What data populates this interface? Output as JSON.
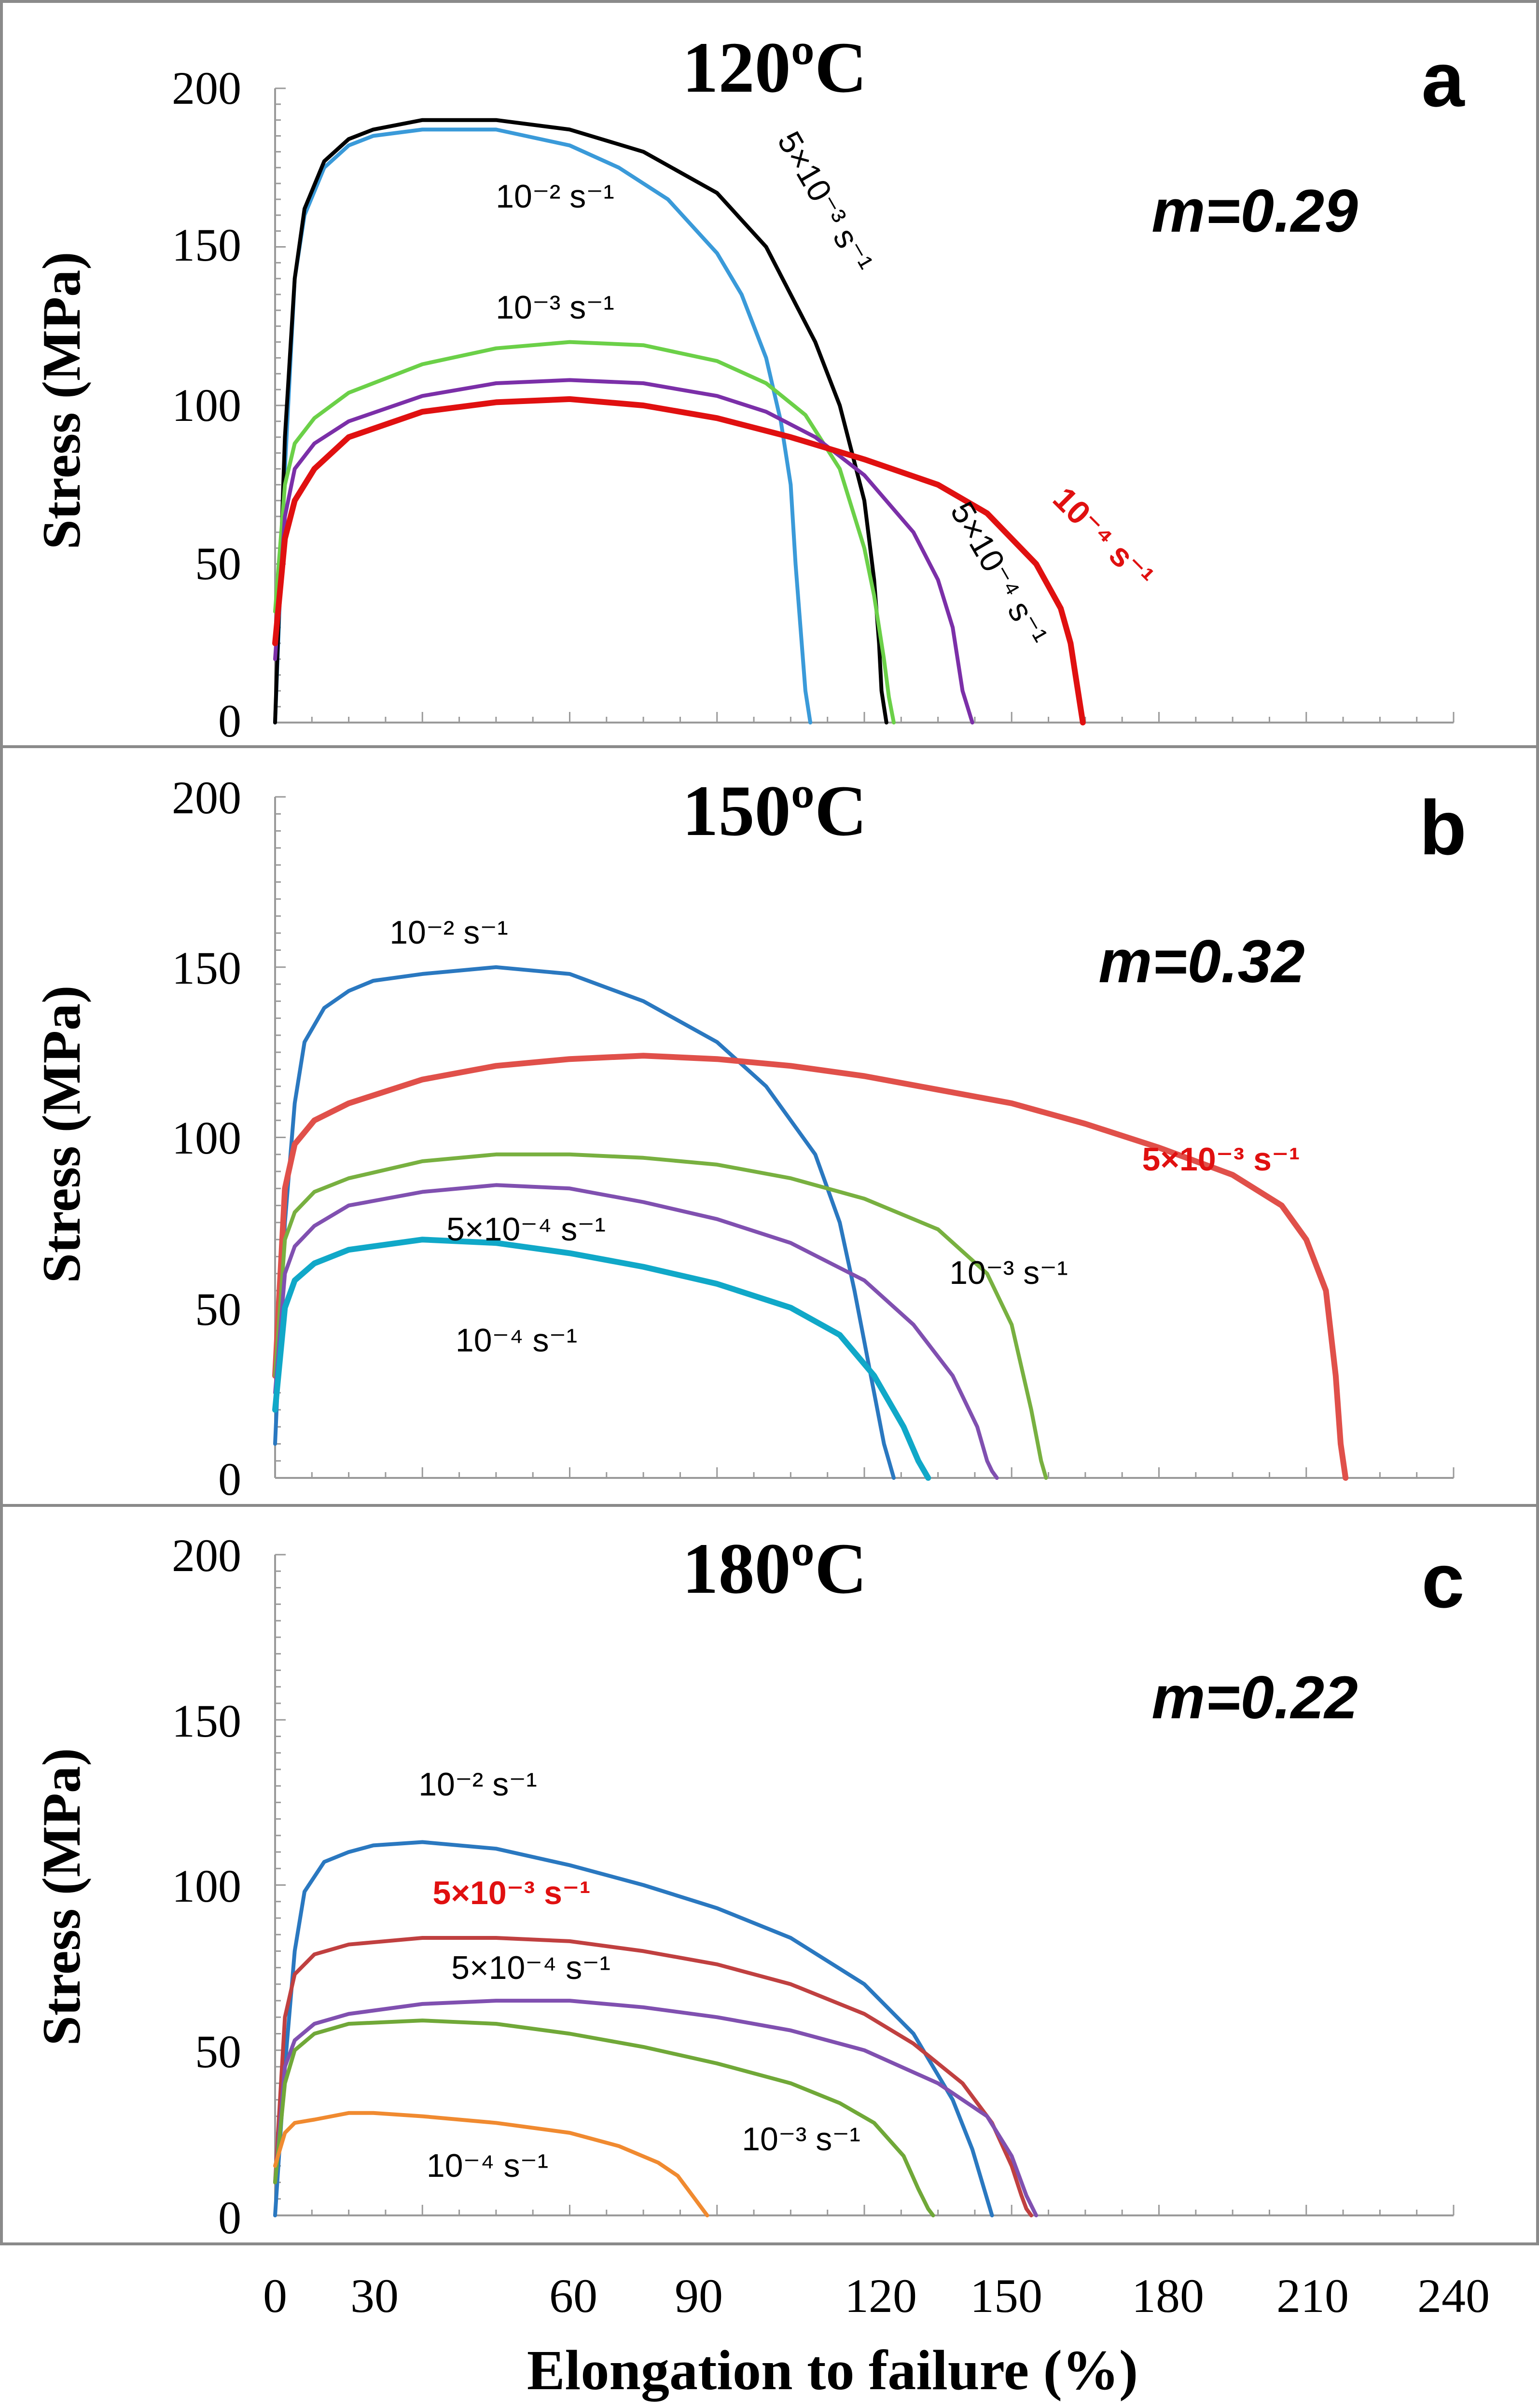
{
  "x_axis_label": "Elongation to failure (%)",
  "x_tick_labels": [
    "0",
    "30",
    "60",
    "90",
    "120",
    "150",
    "180",
    "210",
    "240"
  ],
  "chart_data": [
    {
      "type": "line",
      "title": "120ºC",
      "panel_letter": "a",
      "m_value": "m=0.29",
      "ylabel": "Stress (MPa)",
      "xlim": [
        0,
        240
      ],
      "ylim": [
        0,
        200
      ],
      "y_tick_labels": [
        "0",
        "50",
        "100",
        "150",
        "200"
      ],
      "series": [
        {
          "name": "10⁻² s⁻¹",
          "color": "#3a9ad9",
          "x": [
            0,
            2,
            4,
            6,
            10,
            15,
            20,
            30,
            45,
            60,
            70,
            80,
            90,
            95,
            100,
            103,
            105,
            106,
            107,
            108,
            109
          ],
          "y": [
            0,
            80,
            140,
            160,
            175,
            182,
            185,
            187,
            187,
            182,
            175,
            165,
            148,
            135,
            115,
            95,
            75,
            50,
            30,
            10,
            0
          ]
        },
        {
          "name": "5×10⁻³ s⁻¹",
          "color": "#000000",
          "x": [
            0,
            2,
            4,
            6,
            10,
            15,
            20,
            30,
            45,
            60,
            75,
            90,
            100,
            110,
            115,
            120,
            122,
            123,
            123.5,
            124,
            124.5
          ],
          "y": [
            0,
            90,
            140,
            162,
            177,
            184,
            187,
            190,
            190,
            187,
            180,
            167,
            150,
            120,
            100,
            70,
            45,
            25,
            10,
            5,
            0
          ]
        },
        {
          "name": "10⁻³ s⁻¹",
          "color": "#6bd048",
          "x": [
            0,
            2,
            4,
            8,
            15,
            30,
            45,
            60,
            75,
            90,
            100,
            108,
            115,
            120,
            122,
            124,
            125,
            126
          ],
          "y": [
            35,
            75,
            88,
            96,
            104,
            113,
            118,
            120,
            119,
            114,
            107,
            97,
            80,
            55,
            40,
            20,
            8,
            0
          ]
        },
        {
          "name": "5×10⁻⁴ s⁻¹",
          "color": "#7b2fa8",
          "x": [
            0,
            2,
            4,
            8,
            15,
            30,
            45,
            60,
            75,
            90,
            100,
            110,
            120,
            130,
            135,
            138,
            139,
            140,
            141,
            142
          ],
          "y": [
            20,
            65,
            80,
            88,
            95,
            103,
            107,
            108,
            107,
            103,
            98,
            90,
            78,
            60,
            45,
            30,
            20,
            10,
            5,
            0
          ]
        },
        {
          "name": "10⁻⁴ s⁻¹",
          "color": "#e01010",
          "x": [
            0,
            2,
            4,
            8,
            15,
            30,
            45,
            60,
            75,
            90,
            105,
            120,
            135,
            145,
            155,
            160,
            162,
            163,
            164,
            164.5
          ],
          "y": [
            25,
            58,
            70,
            80,
            90,
            98,
            101,
            102,
            100,
            96,
            90,
            83,
            75,
            66,
            50,
            36,
            25,
            15,
            5,
            0
          ]
        }
      ],
      "annotations": [
        {
          "text": "10⁻² s⁻¹",
          "series": "10⁻² s⁻¹"
        },
        {
          "text": "5×10⁻³ s⁻¹",
          "series": "5×10⁻³ s⁻¹"
        },
        {
          "text": "10⁻³ s⁻¹",
          "series": "10⁻³ s⁻¹"
        },
        {
          "text": "5×10⁻⁴ s⁻¹",
          "series": "5×10⁻⁴ s⁻¹"
        },
        {
          "text": "10⁻⁴ s⁻¹",
          "series": "10⁻⁴ s⁻¹"
        }
      ]
    },
    {
      "type": "line",
      "title": "150ºC",
      "panel_letter": "b",
      "m_value": "m=0.32",
      "ylabel": "Stress (MPa)",
      "xlim": [
        0,
        240
      ],
      "ylim": [
        0,
        200
      ],
      "y_tick_labels": [
        "0",
        "50",
        "100",
        "150",
        "200"
      ],
      "series": [
        {
          "name": "10⁻² s⁻¹",
          "color": "#2a78c0",
          "x": [
            0,
            2,
            4,
            6,
            10,
            15,
            20,
            30,
            45,
            60,
            75,
            90,
            100,
            110,
            115,
            118,
            120,
            122,
            124,
            125,
            126
          ],
          "y": [
            10,
            75,
            110,
            128,
            138,
            143,
            146,
            148,
            150,
            148,
            140,
            128,
            115,
            95,
            75,
            55,
            40,
            25,
            10,
            5,
            0
          ]
        },
        {
          "name": "5×10⁻³ s⁻¹",
          "color": "#e0504a",
          "x": [
            0,
            2,
            4,
            8,
            15,
            30,
            45,
            60,
            75,
            90,
            105,
            120,
            135,
            150,
            165,
            180,
            195,
            205,
            210,
            214,
            216,
            217,
            218
          ],
          "y": [
            30,
            85,
            98,
            105,
            110,
            117,
            121,
            123,
            124,
            123,
            121,
            118,
            114,
            110,
            104,
            97,
            89,
            80,
            70,
            55,
            30,
            10,
            0
          ]
        },
        {
          "name": "10⁻³ s⁻¹",
          "color": "#78b040",
          "x": [
            0,
            2,
            4,
            8,
            15,
            30,
            45,
            60,
            75,
            90,
            105,
            120,
            135,
            145,
            150,
            154,
            156,
            157
          ],
          "y": [
            30,
            70,
            78,
            84,
            88,
            93,
            95,
            95,
            94,
            92,
            88,
            82,
            73,
            60,
            45,
            20,
            5,
            0
          ]
        },
        {
          "name": "5×10⁻⁴ s⁻¹",
          "color": "#8050b0",
          "x": [
            0,
            2,
            4,
            8,
            15,
            30,
            45,
            60,
            75,
            90,
            105,
            120,
            130,
            138,
            143,
            145,
            146,
            147
          ],
          "y": [
            25,
            60,
            68,
            74,
            80,
            84,
            86,
            85,
            81,
            76,
            69,
            58,
            45,
            30,
            15,
            5,
            2,
            0
          ]
        },
        {
          "name": "10⁻⁴ s⁻¹",
          "color": "#10a8c8",
          "x": [
            0,
            2,
            4,
            8,
            15,
            30,
            45,
            60,
            75,
            90,
            105,
            115,
            122,
            128,
            131,
            133
          ],
          "y": [
            20,
            50,
            58,
            63,
            67,
            70,
            69,
            66,
            62,
            57,
            50,
            42,
            30,
            15,
            5,
            0
          ]
        }
      ],
      "annotations": [
        {
          "text": "10⁻² s⁻¹",
          "series": "10⁻² s⁻¹"
        },
        {
          "text": "5×10⁻³ s⁻¹",
          "series": "5×10⁻³ s⁻¹"
        },
        {
          "text": "5×10⁻⁴ s⁻¹",
          "series": "5×10⁻⁴ s⁻¹"
        },
        {
          "text": "10⁻³ s⁻¹",
          "series": "10⁻³ s⁻¹"
        },
        {
          "text": "10⁻⁴ s⁻¹",
          "series": "10⁻⁴ s⁻¹"
        }
      ]
    },
    {
      "type": "line",
      "title": "180ºC",
      "panel_letter": "c",
      "m_value": "m=0.22",
      "ylabel": "Stress (MPa)",
      "xlim": [
        0,
        240
      ],
      "ylim": [
        0,
        200
      ],
      "y_tick_labels": [
        "0",
        "50",
        "100",
        "150",
        "200"
      ],
      "series": [
        {
          "name": "10⁻² s⁻¹",
          "color": "#2a78c0",
          "x": [
            0,
            2,
            4,
            6,
            10,
            15,
            20,
            30,
            45,
            60,
            75,
            90,
            105,
            120,
            130,
            138,
            142,
            144,
            145,
            146
          ],
          "y": [
            0,
            45,
            80,
            98,
            107,
            110,
            112,
            113,
            111,
            106,
            100,
            93,
            84,
            70,
            55,
            35,
            20,
            10,
            5,
            0
          ]
        },
        {
          "name": "5×10⁻³ s⁻¹",
          "color": "#c04040",
          "x": [
            0,
            2,
            4,
            8,
            15,
            30,
            45,
            60,
            75,
            90,
            105,
            120,
            130,
            140,
            146,
            150,
            152,
            153,
            154
          ],
          "y": [
            10,
            60,
            73,
            79,
            82,
            84,
            84,
            83,
            80,
            76,
            70,
            61,
            52,
            40,
            28,
            15,
            6,
            2,
            0
          ]
        },
        {
          "name": "5×10⁻⁴ s⁻¹",
          "color": "#8050b0",
          "x": [
            0,
            2,
            4,
            8,
            15,
            30,
            45,
            60,
            75,
            90,
            105,
            120,
            135,
            145,
            150,
            153,
            155
          ],
          "y": [
            10,
            45,
            53,
            58,
            61,
            64,
            65,
            65,
            63,
            60,
            56,
            50,
            40,
            30,
            18,
            6,
            0
          ]
        },
        {
          "name": "10⁻³ s⁻¹",
          "color": "#70a838",
          "x": [
            0,
            2,
            4,
            8,
            15,
            30,
            45,
            60,
            75,
            90,
            105,
            115,
            122,
            128,
            131,
            133,
            134
          ],
          "y": [
            10,
            40,
            50,
            55,
            58,
            59,
            58,
            55,
            51,
            46,
            40,
            34,
            28,
            18,
            8,
            2,
            0
          ]
        },
        {
          "name": "10⁻⁴ s⁻¹",
          "color": "#f08a30",
          "x": [
            0,
            2,
            4,
            8,
            15,
            20,
            30,
            45,
            60,
            70,
            78,
            82,
            85,
            87,
            88
          ],
          "y": [
            15,
            25,
            28,
            29,
            31,
            31,
            30,
            28,
            25,
            21,
            16,
            12,
            6,
            2,
            0
          ]
        }
      ],
      "annotations": [
        {
          "text": "10⁻² s⁻¹",
          "series": "10⁻² s⁻¹"
        },
        {
          "text": "5×10⁻³ s⁻¹",
          "series": "5×10⁻³ s⁻¹"
        },
        {
          "text": "5×10⁻⁴ s⁻¹",
          "series": "5×10⁻⁴ s⁻¹"
        },
        {
          "text": "10⁻³ s⁻¹",
          "series": "10⁻³ s⁻¹"
        },
        {
          "text": "10⁻⁴ s⁻¹",
          "series": "10⁻⁴ s⁻¹"
        }
      ]
    }
  ]
}
